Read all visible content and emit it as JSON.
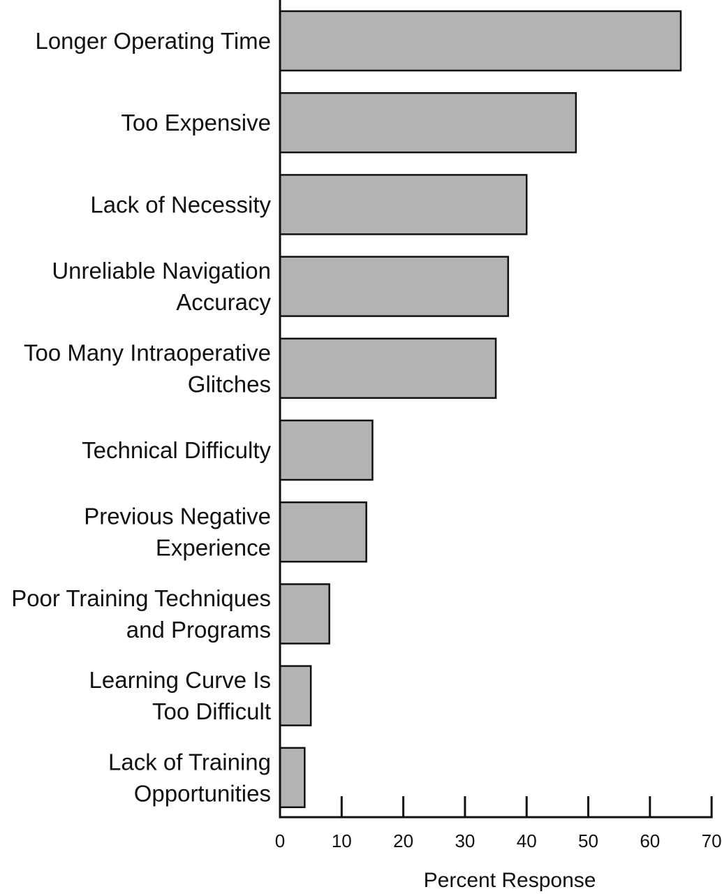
{
  "chart_data": {
    "type": "bar",
    "orientation": "horizontal",
    "categories": [
      [
        "Longer Operating Time"
      ],
      [
        "Too Expensive"
      ],
      [
        "Lack of Necessity"
      ],
      [
        "Unreliable Navigation",
        "Accuracy"
      ],
      [
        "Too Many Intraoperative",
        "Glitches"
      ],
      [
        "Technical Difficulty"
      ],
      [
        "Previous Negative",
        "Experience"
      ],
      [
        "Poor Training Techniques",
        "and Programs"
      ],
      [
        "Learning Curve Is",
        "Too Difficult"
      ],
      [
        "Lack of Training",
        "Opportunities"
      ]
    ],
    "values": [
      65,
      48,
      40,
      37,
      35,
      15,
      14,
      8,
      5,
      4
    ],
    "xlabel": "Percent Response",
    "ylabel": "",
    "xlim": [
      0,
      70
    ],
    "xticks": [
      0,
      10,
      20,
      30,
      40,
      50,
      60,
      70
    ],
    "grid": false,
    "colors": {
      "bar_fill": "#b3b3b3",
      "bar_stroke": "#111111",
      "axis": "#111111"
    }
  }
}
